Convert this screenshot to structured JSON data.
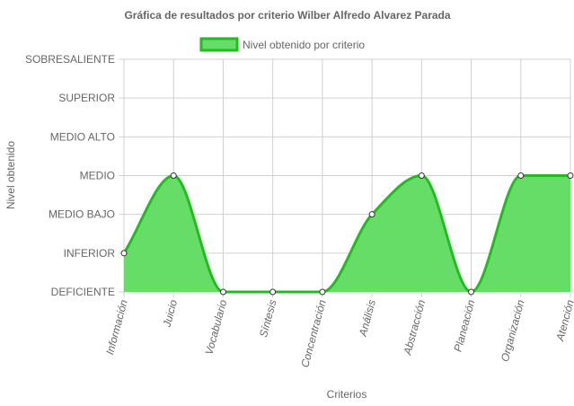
{
  "chart_data": {
    "type": "area",
    "title": "Gráfica de resultados por criterio Wilber  Alfredo Alvarez Parada",
    "xlabel": "Criterios",
    "ylabel": "Nivel obtenido",
    "y_levels": [
      "DEFICIENTE",
      "INFERIOR",
      "MEDIO BAJO",
      "MEDIO",
      "MEDIO ALTO",
      "SUPERIOR",
      "SOBRESALIENTE"
    ],
    "ylim": [
      0,
      6
    ],
    "categories": [
      "Información",
      "Juicio",
      "Vocabulario",
      "Síntesis",
      "Concentración",
      "Análisis",
      "Abstracción",
      "Planeación",
      "Organización",
      "Atención"
    ],
    "series": [
      {
        "name": "Nivel obtenido por criterio",
        "values": [
          1,
          3,
          0,
          0,
          0,
          2,
          3,
          0,
          3,
          3
        ]
      }
    ],
    "legend_position": "top",
    "grid": true,
    "colors": {
      "fill": "#66dd66",
      "line": "#22bb22",
      "grid": "#d0d0d0",
      "text": "#666666"
    }
  }
}
